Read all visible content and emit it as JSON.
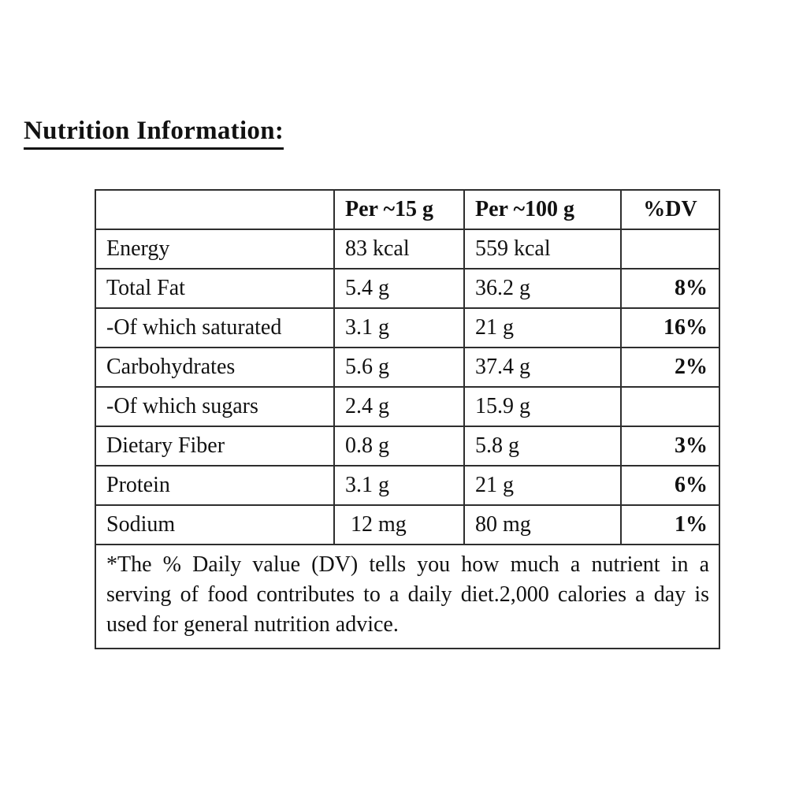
{
  "document": {
    "title": "Nutrition Information:"
  },
  "table": {
    "columns": [
      "",
      "Per ~15 g",
      "Per ~100 g",
      "%DV"
    ],
    "rows": [
      {
        "label": "Energy",
        "per15": "83 kcal",
        "per100": "559 kcal",
        "dv": ""
      },
      {
        "label": "Total Fat",
        "per15": "5.4 g",
        "per100": "36.2 g",
        "dv": "8%"
      },
      {
        "label": "-Of which saturated",
        "per15": "3.1 g",
        "per100": "21 g",
        "dv": "16%"
      },
      {
        "label": "Carbohydrates",
        "per15": "5.6 g",
        "per100": "37.4 g",
        "dv": "2%"
      },
      {
        "label": "-Of which sugars",
        "per15": "2.4 g",
        "per100": "15.9 g",
        "dv": ""
      },
      {
        "label": "Dietary Fiber",
        "per15": "0.8 g",
        "per100": "5.8 g",
        "dv": "3%"
      },
      {
        "label": "Protein",
        "per15": "3.1 g",
        "per100": "21 g",
        "dv": "6%"
      },
      {
        "label": "Sodium",
        "per15": " 12 mg",
        "per100": "80 mg",
        "dv": "1%"
      }
    ],
    "footnote": "*The % Daily value (DV) tells you how much a nutrient in a serving of food contributes to a daily diet.2,000 calories a day is used for general nutrition advice."
  },
  "colors": {
    "text": "#111111",
    "border": "#2e2e2e",
    "background": "#ffffff"
  }
}
